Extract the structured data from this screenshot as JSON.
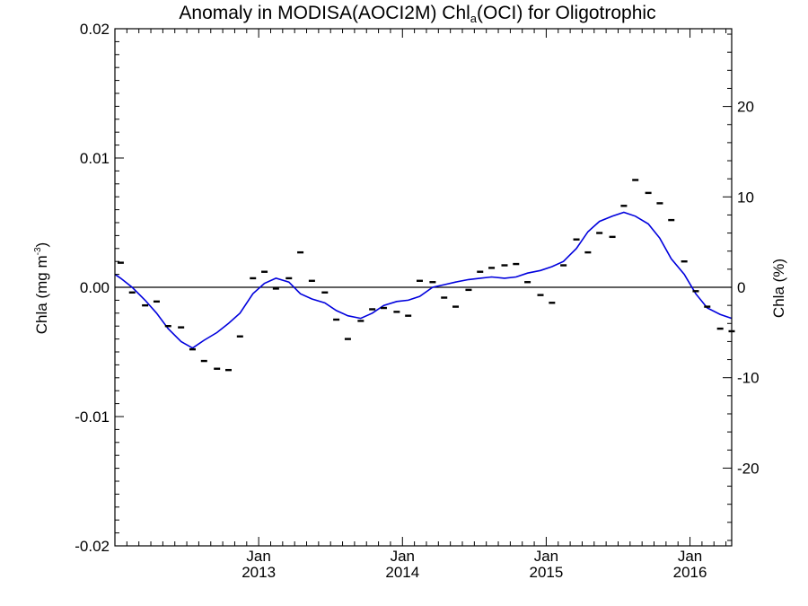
{
  "title": {
    "prefix": "Anomaly in MODISA(AOCI2M) Chl",
    "subscript": "a",
    "suffix": "(OCI) for Oligotrophic"
  },
  "ylabel_left": {
    "text": "Chla (mg m",
    "sup": "-3",
    "close": ")"
  },
  "ylabel_right": "Chla (%)",
  "chart_data": {
    "type": "line",
    "title": "Anomaly in MODISA(AOCI2M) Chla(OCI) for Oligotrophic",
    "xlabel": "",
    "ylabel": "Chla (mg m-3)",
    "y2label": "Chla (%)",
    "xlim": [
      2012.0,
      2016.29
    ],
    "ylim": [
      -0.02,
      0.02
    ],
    "y2lim": [
      -28.6,
      28.6
    ],
    "left_ticks": [
      "0.02",
      "0.01",
      "0.00",
      "-0.01",
      "-0.02"
    ],
    "left_tick_values": [
      0.02,
      0.01,
      0.0,
      -0.01,
      -0.02
    ],
    "right_ticks": [
      "20",
      "10",
      "0",
      "-10",
      "-20"
    ],
    "right_tick_values": [
      20,
      10,
      0,
      -10,
      -20
    ],
    "x_ticks": [
      {
        "month": "Jan",
        "year": "2013",
        "value": 2013.0
      },
      {
        "month": "Jan",
        "year": "2014",
        "value": 2014.0
      },
      {
        "month": "Jan",
        "year": "2015",
        "value": 2015.0
      },
      {
        "month": "Jan",
        "year": "2016",
        "value": 2016.0
      }
    ],
    "grid": false,
    "zero_line": 0.0,
    "series": [
      {
        "kind": "monthly-anomaly-markers",
        "color": "#000000",
        "x": [
          2012.04,
          2012.12,
          2012.21,
          2012.29,
          2012.37,
          2012.46,
          2012.54,
          2012.62,
          2012.71,
          2012.79,
          2012.87,
          2012.96,
          2013.04,
          2013.12,
          2013.21,
          2013.29,
          2013.37,
          2013.46,
          2013.54,
          2013.62,
          2013.71,
          2013.79,
          2013.87,
          2013.96,
          2014.04,
          2014.12,
          2014.21,
          2014.29,
          2014.37,
          2014.46,
          2014.54,
          2014.62,
          2014.71,
          2014.79,
          2014.87,
          2014.96,
          2015.04,
          2015.12,
          2015.21,
          2015.29,
          2015.37,
          2015.46,
          2015.54,
          2015.62,
          2015.71,
          2015.79,
          2015.87,
          2015.96,
          2016.04,
          2016.12,
          2016.21,
          2016.29
        ],
        "values": [
          0.0019,
          -0.0004,
          -0.0014,
          -0.0011,
          -0.003,
          -0.0031,
          -0.0048,
          -0.0057,
          -0.0063,
          -0.0064,
          -0.0038,
          0.0007,
          0.0012,
          -0.0001,
          0.0007,
          0.0027,
          0.0005,
          -0.0004,
          -0.0025,
          -0.004,
          -0.0026,
          -0.0017,
          -0.0016,
          -0.0019,
          -0.0022,
          0.0005,
          0.0004,
          -0.0008,
          -0.0015,
          -0.0002,
          0.0012,
          0.0015,
          0.0017,
          0.0018,
          0.0004,
          -0.0006,
          -0.0012,
          0.0017,
          0.0037,
          0.0027,
          0.0042,
          0.0039,
          0.0063,
          0.0083,
          0.0073,
          0.0065,
          0.0052,
          0.002,
          -0.0003,
          -0.0015,
          -0.0032,
          -0.0034
        ]
      },
      {
        "kind": "smoothed-anomaly",
        "color": "#0000dd",
        "x": [
          2012.0,
          2012.04,
          2012.12,
          2012.21,
          2012.29,
          2012.37,
          2012.46,
          2012.54,
          2012.62,
          2012.71,
          2012.79,
          2012.87,
          2012.96,
          2013.04,
          2013.12,
          2013.21,
          2013.29,
          2013.37,
          2013.46,
          2013.54,
          2013.62,
          2013.71,
          2013.79,
          2013.87,
          2013.96,
          2014.04,
          2014.12,
          2014.21,
          2014.29,
          2014.37,
          2014.46,
          2014.54,
          2014.62,
          2014.71,
          2014.79,
          2014.87,
          2014.96,
          2015.04,
          2015.12,
          2015.21,
          2015.29,
          2015.37,
          2015.46,
          2015.54,
          2015.62,
          2015.71,
          2015.79,
          2015.87,
          2015.96,
          2016.04,
          2016.12,
          2016.21,
          2016.29
        ],
        "values": [
          0.001,
          0.0007,
          0.0,
          -0.001,
          -0.002,
          -0.0032,
          -0.0042,
          -0.0047,
          -0.0041,
          -0.0035,
          -0.0028,
          -0.002,
          -0.0005,
          0.0003,
          0.0007,
          0.0004,
          -0.0005,
          -0.0009,
          -0.0012,
          -0.0018,
          -0.0022,
          -0.0024,
          -0.002,
          -0.0014,
          -0.0011,
          -0.001,
          -0.0007,
          0.0,
          0.0002,
          0.0004,
          0.0006,
          0.0007,
          0.0008,
          0.0007,
          0.0008,
          0.0011,
          0.0013,
          0.0016,
          0.002,
          0.003,
          0.0043,
          0.0051,
          0.0055,
          0.0058,
          0.0055,
          0.0049,
          0.0038,
          0.0022,
          0.001,
          -0.0005,
          -0.0016,
          -0.0021,
          -0.0024
        ]
      }
    ]
  }
}
